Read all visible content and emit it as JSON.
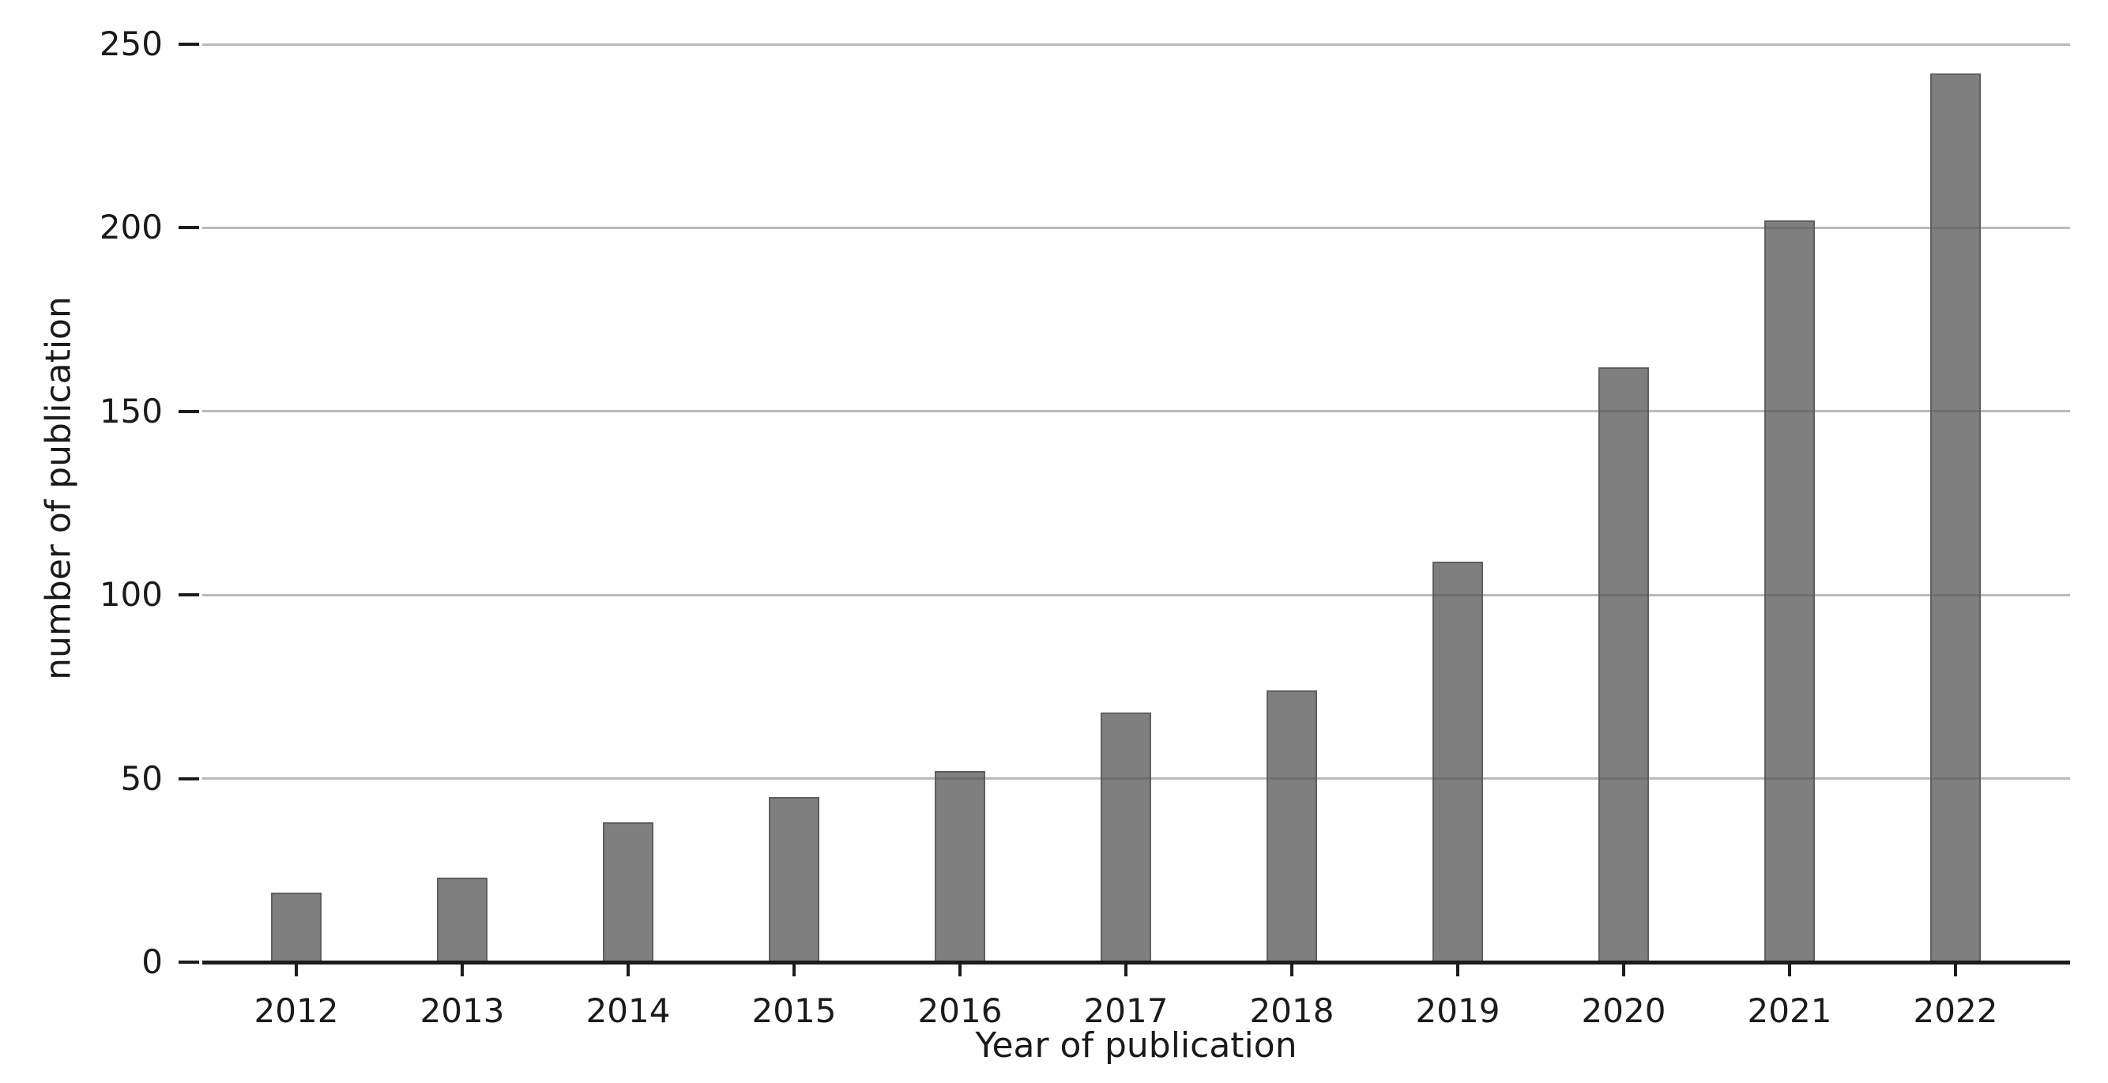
{
  "chart_data": {
    "type": "bar",
    "title": "",
    "xlabel": "Year of publication",
    "ylabel": "number of publication",
    "categories": [
      "2012",
      "2013",
      "2014",
      "2015",
      "2016",
      "2017",
      "2018",
      "2019",
      "2020",
      "2021",
      "2022"
    ],
    "values": [
      19,
      23,
      38,
      45,
      52,
      68,
      74,
      109,
      162,
      202,
      242
    ],
    "yticks": [
      0,
      50,
      100,
      150,
      200,
      250
    ],
    "ylim": [
      0,
      250
    ],
    "grid": true,
    "legend_position": "none",
    "colors": {
      "bar_fill": "#7f7f7f",
      "bar_edge": "#5f5f5f",
      "gridline_over_bars": "rgba(90,90,90,0.42)",
      "axis_line": "#1c1c1c",
      "text": "#1a1a1a",
      "background": "#ffffff"
    }
  }
}
